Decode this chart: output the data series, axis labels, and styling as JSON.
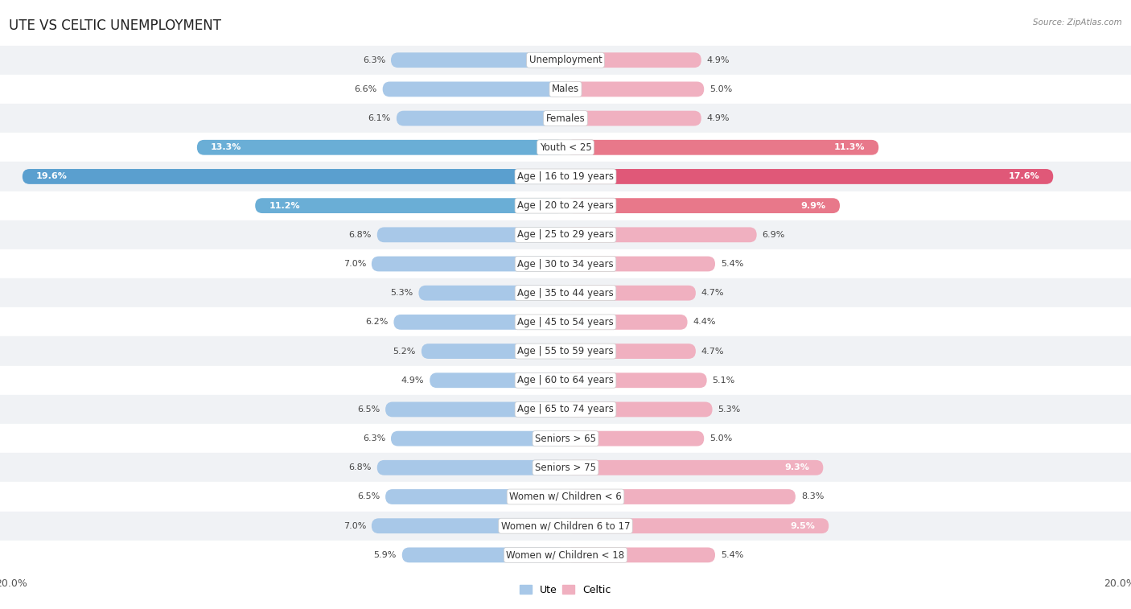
{
  "title": "UTE VS CELTIC UNEMPLOYMENT",
  "source": "Source: ZipAtlas.com",
  "categories": [
    "Unemployment",
    "Males",
    "Females",
    "Youth < 25",
    "Age | 16 to 19 years",
    "Age | 20 to 24 years",
    "Age | 25 to 29 years",
    "Age | 30 to 34 years",
    "Age | 35 to 44 years",
    "Age | 45 to 54 years",
    "Age | 55 to 59 years",
    "Age | 60 to 64 years",
    "Age | 65 to 74 years",
    "Seniors > 65",
    "Seniors > 75",
    "Women w/ Children < 6",
    "Women w/ Children 6 to 17",
    "Women w/ Children < 18"
  ],
  "ute_values": [
    6.3,
    6.6,
    6.1,
    13.3,
    19.6,
    11.2,
    6.8,
    7.0,
    5.3,
    6.2,
    5.2,
    4.9,
    6.5,
    6.3,
    6.8,
    6.5,
    7.0,
    5.9
  ],
  "celtic_values": [
    4.9,
    5.0,
    4.9,
    11.3,
    17.6,
    9.9,
    6.9,
    5.4,
    4.7,
    4.4,
    4.7,
    5.1,
    5.3,
    5.0,
    9.3,
    8.3,
    9.5,
    5.4
  ],
  "ute_color_normal": "#a8c8e8",
  "celtic_color_normal": "#f0b0c0",
  "ute_color_highlight": "#6aaed6",
  "celtic_color_highlight": "#e8788a",
  "ute_color_strong": "#5a9fcf",
  "celtic_color_strong": "#e05878",
  "max_value": 20.0,
  "row_bg_odd": "#f0f2f5",
  "row_bg_even": "#ffffff",
  "value_threshold_inside": 9.0,
  "title_fontsize": 12,
  "label_fontsize": 8.5,
  "value_fontsize": 8.0,
  "axis_label_fontsize": 9,
  "legend_fontsize": 9
}
